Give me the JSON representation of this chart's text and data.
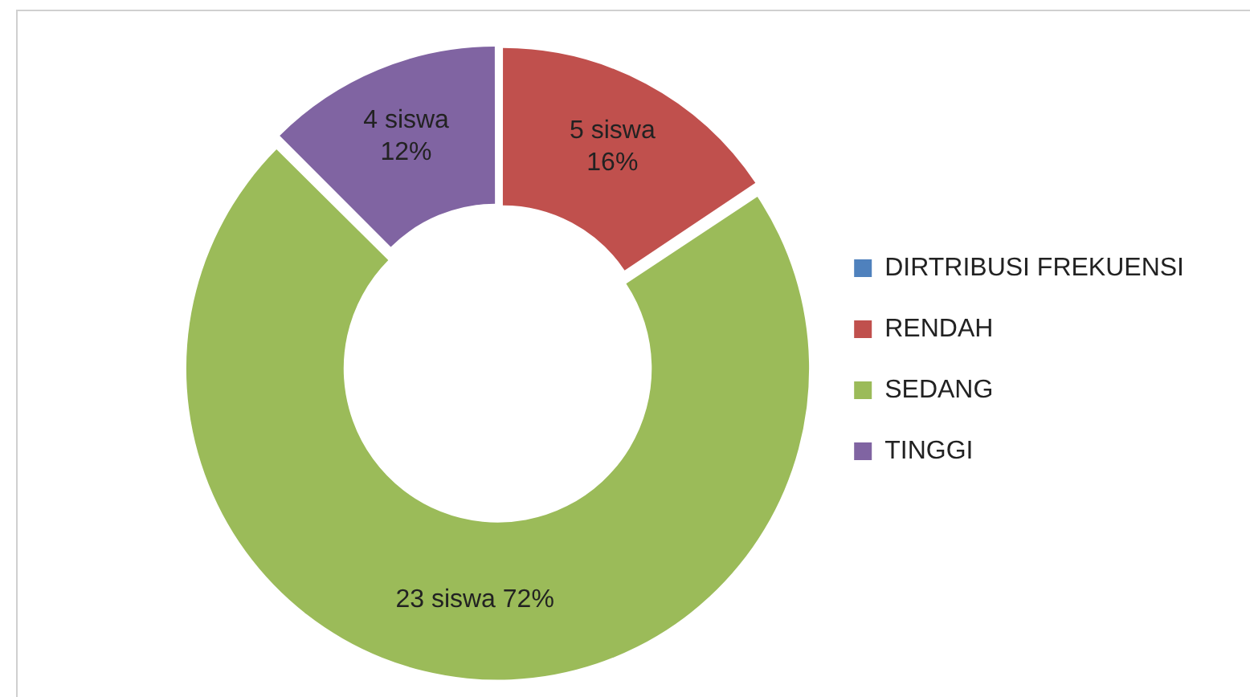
{
  "chart_data": {
    "type": "donut",
    "categories": [
      "DIRTRIBUSI FREKUENSI",
      "RENDAH",
      "SEDANG",
      "TINGGI"
    ],
    "values": [
      0,
      5,
      23,
      4
    ],
    "colors": [
      "#4f81bd",
      "#c0504d",
      "#9bbb59",
      "#8064a2"
    ],
    "value_labels": [
      null,
      "5 siswa\n16%",
      "23 siswa 72%",
      "4 siswa\n12%"
    ],
    "legend": "right"
  }
}
